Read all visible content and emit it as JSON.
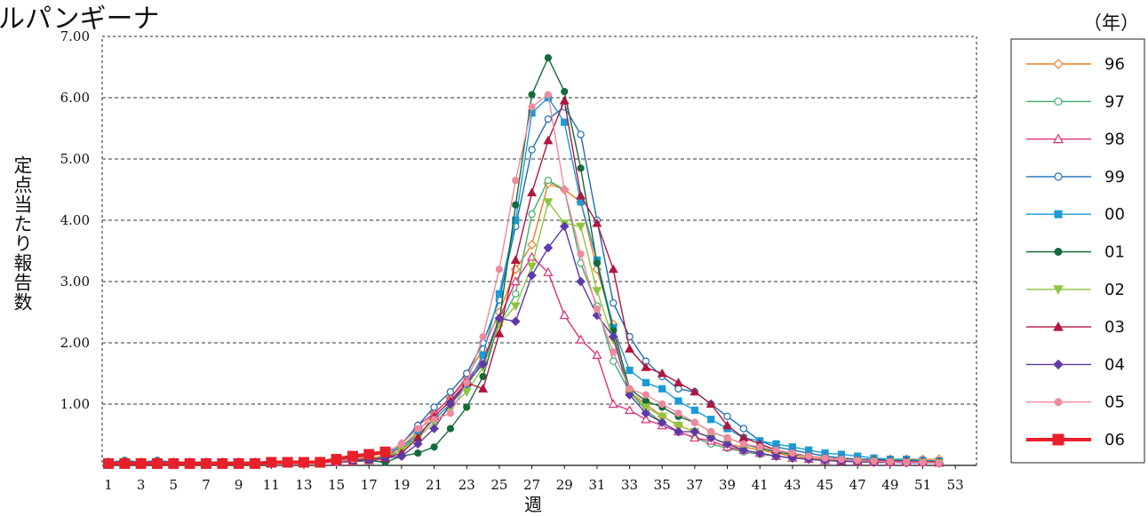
{
  "title": "ルパンギーナ",
  "year_unit": "（年）",
  "chart_data": {
    "type": "line",
    "ylabel": "定点当たり報告数",
    "xlabel": "週",
    "ylim": [
      0,
      7
    ],
    "yticks": [
      "1.00",
      "2.00",
      "3.00",
      "4.00",
      "5.00",
      "6.00",
      "7.00"
    ],
    "xticks": [
      "1",
      "3",
      "5",
      "7",
      "9",
      "11",
      "13",
      "15",
      "17",
      "19",
      "21",
      "23",
      "25",
      "27",
      "29",
      "31",
      "33",
      "35",
      "37",
      "39",
      "41",
      "43",
      "45",
      "47",
      "49",
      "51",
      "53"
    ],
    "grid": "horizontal dashed",
    "legend_position": "right",
    "series": [
      {
        "name": "96",
        "color": "#ee7d22",
        "marker": "diamond-open",
        "values": [
          0.05,
          0.05,
          0.05,
          0.05,
          0.05,
          0.05,
          0.05,
          0.05,
          0.05,
          0.05,
          0.05,
          0.05,
          0.05,
          0.07,
          0.08,
          0.1,
          0.12,
          0.15,
          0.3,
          0.55,
          0.85,
          1.1,
          1.45,
          1.9,
          2.5,
          3.2,
          3.6,
          4.6,
          4.5,
          4.3,
          3.2,
          2.3,
          1.2,
          1.0,
          0.8,
          0.65,
          0.55,
          0.45,
          0.35,
          0.3,
          0.25,
          0.2,
          0.15,
          0.12,
          0.1,
          0.1,
          0.1,
          0.1,
          0.1,
          0.1,
          0.1,
          0.1
        ]
      },
      {
        "name": "97",
        "color": "#3fae6a",
        "marker": "circle-open",
        "values": [
          0.05,
          0.05,
          0.05,
          0.05,
          0.05,
          0.05,
          0.05,
          0.05,
          0.05,
          0.05,
          0.05,
          0.05,
          0.05,
          0.05,
          0.06,
          0.08,
          0.1,
          0.12,
          0.25,
          0.5,
          0.75,
          1.0,
          1.3,
          1.7,
          2.3,
          2.8,
          4.1,
          4.65,
          4.5,
          3.3,
          2.6,
          1.7,
          1.2,
          0.9,
          0.7,
          0.55,
          0.45,
          0.35,
          0.28,
          0.22,
          0.18,
          0.15,
          0.12,
          0.1,
          0.08,
          0.07,
          0.06,
          0.06,
          0.06,
          0.06,
          0.06,
          0.05
        ]
      },
      {
        "name": "98",
        "color": "#dd2f7a",
        "marker": "triangle-open",
        "values": [
          0.03,
          0.03,
          0.03,
          0.03,
          0.03,
          0.03,
          0.03,
          0.03,
          0.03,
          0.03,
          0.03,
          0.03,
          0.03,
          0.04,
          0.05,
          0.06,
          0.08,
          0.1,
          0.35,
          0.65,
          0.85,
          1.1,
          1.4,
          1.7,
          2.4,
          3.0,
          3.4,
          3.15,
          2.45,
          2.05,
          1.8,
          1.0,
          0.9,
          0.75,
          0.65,
          0.55,
          0.45,
          0.4,
          0.3,
          0.25,
          0.2,
          0.15,
          0.12,
          0.1,
          0.08,
          0.07,
          0.06,
          0.05,
          0.05,
          0.05,
          0.05,
          0.04
        ]
      },
      {
        "name": "99",
        "color": "#1b6eb5",
        "marker": "circle-open",
        "values": [
          0.05,
          0.08,
          0.05,
          0.08,
          0.05,
          0.05,
          0.05,
          0.05,
          0.05,
          0.05,
          0.05,
          0.05,
          0.05,
          0.06,
          0.08,
          0.1,
          0.2,
          0.2,
          0.35,
          0.65,
          0.95,
          1.2,
          1.5,
          2.0,
          2.7,
          3.9,
          5.15,
          5.65,
          5.85,
          5.4,
          4.0,
          2.65,
          2.1,
          1.7,
          1.45,
          1.25,
          1.2,
          1.0,
          0.8,
          0.6,
          0.4,
          0.3,
          0.25,
          0.2,
          0.15,
          0.12,
          0.1,
          0.1,
          0.08,
          0.08,
          0.08,
          0.07
        ]
      },
      {
        "name": "00",
        "color": "#1c9ad6",
        "marker": "square",
        "values": [
          0.05,
          0.05,
          0.05,
          0.05,
          0.05,
          0.05,
          0.05,
          0.05,
          0.05,
          0.05,
          0.05,
          0.05,
          0.05,
          0.06,
          0.08,
          0.1,
          0.15,
          0.2,
          0.3,
          0.5,
          0.75,
          1.0,
          1.3,
          1.8,
          2.8,
          4.0,
          5.75,
          6.0,
          5.6,
          4.3,
          3.35,
          2.25,
          1.55,
          1.35,
          1.25,
          1.05,
          0.9,
          0.75,
          0.6,
          0.45,
          0.4,
          0.35,
          0.3,
          0.25,
          0.2,
          0.18,
          0.15,
          0.12,
          0.1,
          0.1,
          0.08,
          0.07
        ]
      },
      {
        "name": "01",
        "color": "#136b3a",
        "marker": "circle",
        "values": [
          0.05,
          0.05,
          0.05,
          0.05,
          0.05,
          0.05,
          0.05,
          0.05,
          0.05,
          0.05,
          0.05,
          0.05,
          0.05,
          0.05,
          0.06,
          0.07,
          0.08,
          0.05,
          0.15,
          0.2,
          0.3,
          0.6,
          0.95,
          1.45,
          2.35,
          4.25,
          6.05,
          6.65,
          6.1,
          4.85,
          3.3,
          2.2,
          1.25,
          1.05,
          0.95,
          0.8,
          0.7,
          0.55,
          0.45,
          0.35,
          0.28,
          0.22,
          0.18,
          0.15,
          0.12,
          0.1,
          0.08,
          0.07,
          0.06,
          0.05,
          0.05,
          0.05
        ]
      },
      {
        "name": "02",
        "color": "#8cc63e",
        "marker": "triangle-down",
        "values": [
          0.05,
          0.05,
          0.05,
          0.05,
          0.05,
          0.05,
          0.05,
          0.05,
          0.05,
          0.05,
          0.05,
          0.05,
          0.05,
          0.05,
          0.06,
          0.08,
          0.1,
          0.15,
          0.25,
          0.45,
          0.7,
          0.95,
          1.2,
          1.6,
          2.3,
          2.6,
          3.25,
          4.3,
          3.95,
          3.9,
          2.85,
          2.05,
          1.2,
          0.95,
          0.8,
          0.65,
          0.55,
          0.45,
          0.35,
          0.25,
          0.2,
          0.15,
          0.12,
          0.1,
          0.08,
          0.07,
          0.06,
          0.05,
          0.05,
          0.05,
          0.05,
          0.04
        ]
      },
      {
        "name": "03",
        "color": "#b0163e",
        "marker": "triangle",
        "values": [
          0.05,
          0.05,
          0.05,
          0.05,
          0.05,
          0.05,
          0.05,
          0.05,
          0.05,
          0.05,
          0.05,
          0.05,
          0.05,
          0.05,
          0.06,
          0.08,
          0.1,
          0.12,
          0.2,
          0.45,
          0.8,
          1.05,
          1.35,
          1.25,
          2.15,
          3.35,
          4.45,
          5.3,
          5.95,
          4.4,
          3.95,
          3.2,
          1.9,
          1.6,
          1.5,
          1.35,
          1.2,
          1.0,
          0.65,
          0.45,
          0.35,
          0.25,
          0.2,
          0.15,
          0.12,
          0.1,
          0.08,
          0.08,
          0.07,
          0.07,
          0.06,
          0.06
        ]
      },
      {
        "name": "04",
        "color": "#5e3aa8",
        "marker": "diamond",
        "values": [
          0.05,
          0.05,
          0.05,
          0.05,
          0.05,
          0.05,
          0.05,
          0.05,
          0.05,
          0.05,
          0.05,
          0.05,
          0.05,
          0.05,
          0.06,
          0.08,
          0.1,
          0.12,
          0.15,
          0.35,
          0.6,
          1.0,
          1.35,
          1.65,
          2.4,
          2.35,
          3.1,
          3.55,
          3.9,
          3.0,
          2.45,
          2.1,
          1.15,
          0.85,
          0.7,
          0.55,
          0.55,
          0.45,
          0.35,
          0.25,
          0.2,
          0.15,
          0.12,
          0.1,
          0.08,
          0.07,
          0.06,
          0.05,
          0.05,
          0.04,
          0.04,
          0.04
        ]
      },
      {
        "name": "05",
        "color": "#f08a9c",
        "marker": "circle",
        "values": [
          0.03,
          0.03,
          0.03,
          0.03,
          0.03,
          0.03,
          0.03,
          0.03,
          0.03,
          0.03,
          0.03,
          0.03,
          0.03,
          0.04,
          0.06,
          0.1,
          0.15,
          0.2,
          0.35,
          0.6,
          0.75,
          0.85,
          1.35,
          2.1,
          3.2,
          4.65,
          5.85,
          6.05,
          4.5,
          3.45,
          2.55,
          1.85,
          1.25,
          1.15,
          1.0,
          0.85,
          0.7,
          0.55,
          0.45,
          0.35,
          0.3,
          0.25,
          0.2,
          0.15,
          0.12,
          0.1,
          0.08,
          0.07,
          0.06,
          0.05,
          0.05,
          0.04
        ]
      },
      {
        "name": "06",
        "color": "#e8202a",
        "marker": "square",
        "bold": true,
        "values": [
          0.03,
          0.03,
          0.03,
          0.03,
          0.03,
          0.03,
          0.03,
          0.03,
          0.03,
          0.03,
          0.05,
          0.05,
          0.05,
          0.05,
          0.1,
          0.15,
          0.18,
          0.22
        ]
      }
    ]
  }
}
